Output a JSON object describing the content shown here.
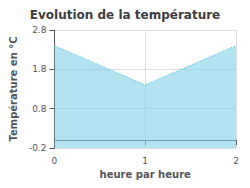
{
  "chart_data": {
    "type": "area",
    "title": "Evolution de la température",
    "xlabel": "heure par heure",
    "ylabel": "Température en °C",
    "x": [
      0,
      1,
      2
    ],
    "values": [
      2.4,
      1.4,
      2.4
    ],
    "xlim": [
      0,
      2
    ],
    "xticks": [
      0,
      1,
      2
    ],
    "ylim": [
      -0.2,
      2.8
    ],
    "yticks": [
      -0.2,
      0.8,
      1.8,
      2.8
    ],
    "grid": true,
    "line_style": "dotted",
    "color": "#80d0e8"
  }
}
